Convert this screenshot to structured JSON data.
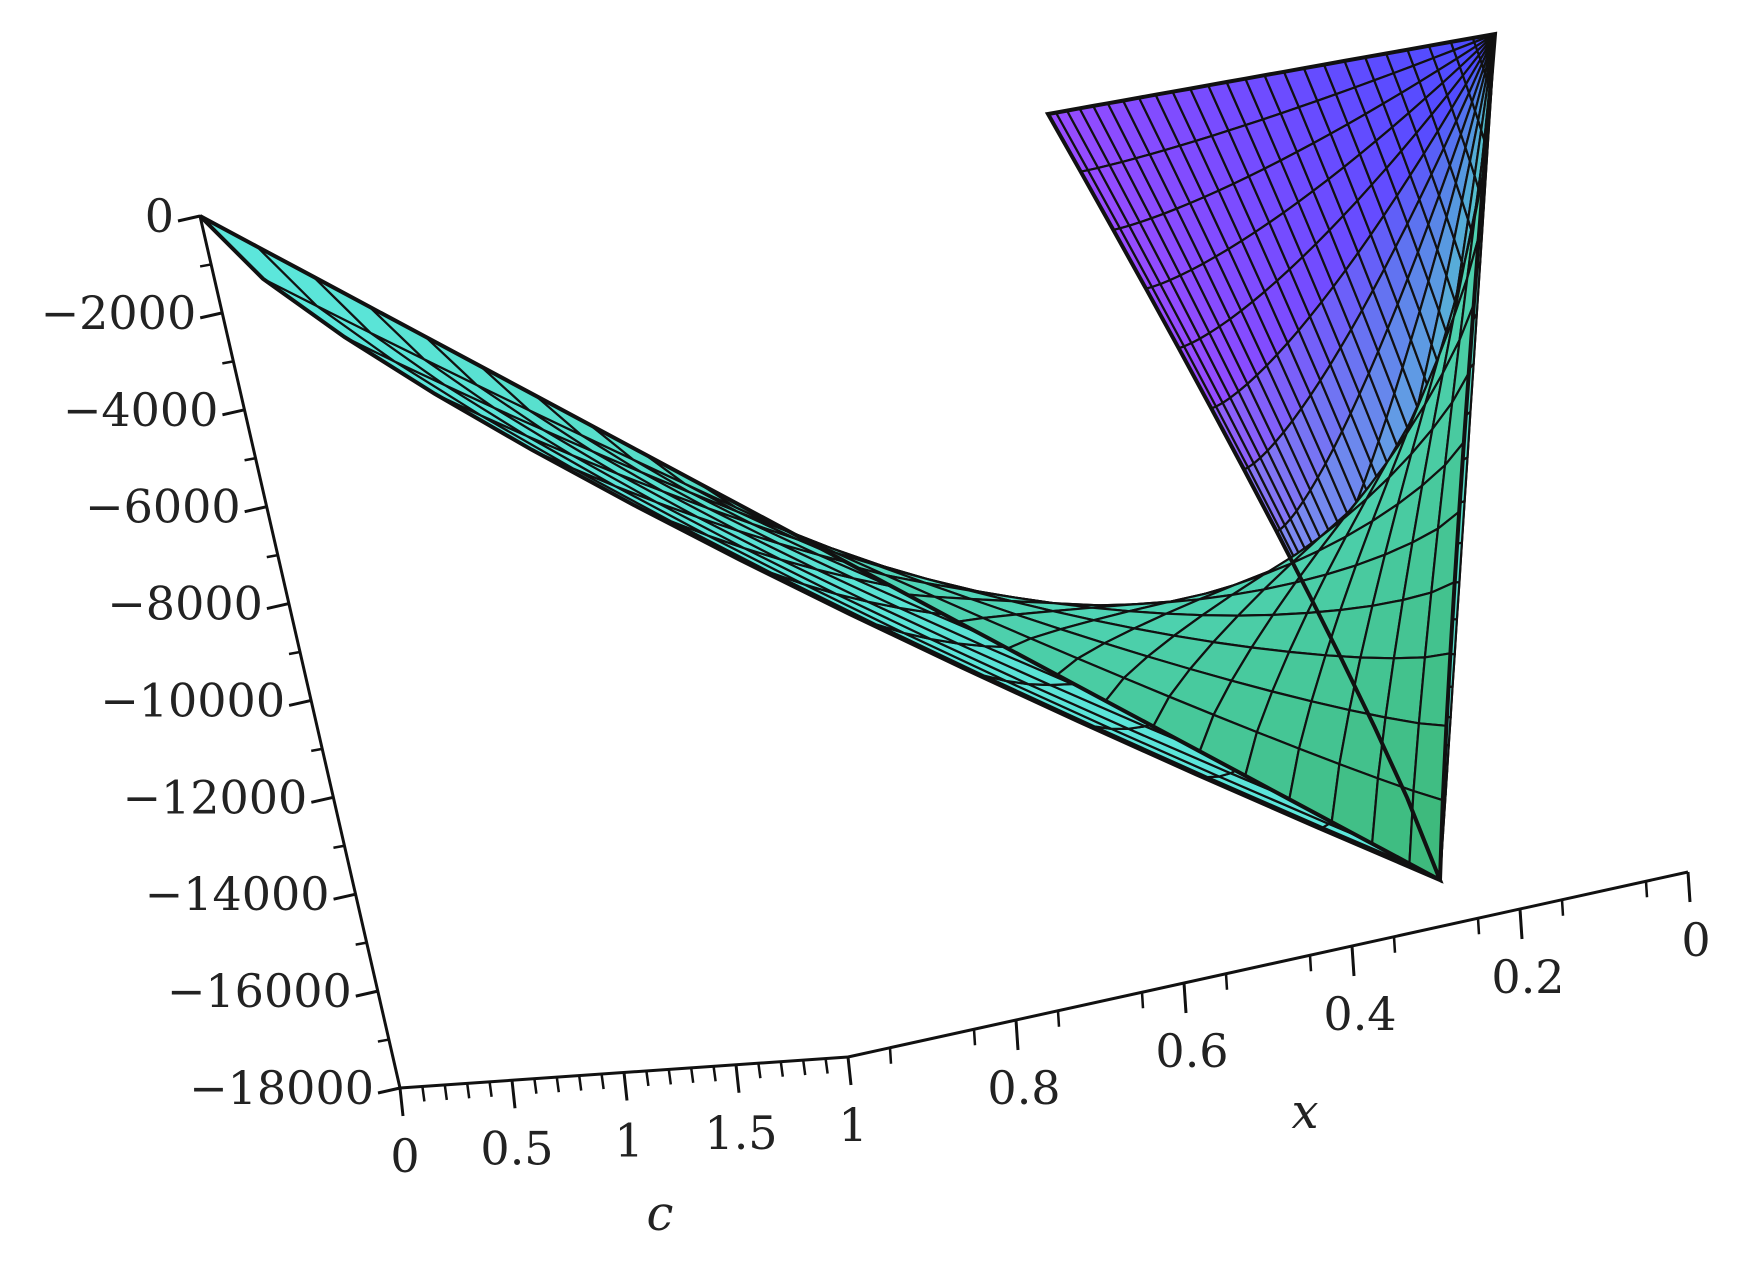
{
  "chart_data": {
    "type": "surface3d",
    "axes": {
      "z": {
        "ticks": [
          0,
          -2000,
          -4000,
          -6000,
          -8000,
          -10000,
          -12000,
          -14000,
          -16000,
          -18000
        ],
        "tick_labels": [
          "0",
          "−2000",
          "−4000",
          "−6000",
          "−8000",
          "−10000",
          "−12000",
          "−14000",
          "−16000",
          "−18000"
        ],
        "range": [
          -18000,
          0
        ],
        "label": ""
      },
      "c": {
        "ticks": [
          0,
          0.5,
          1,
          1.5,
          1
        ],
        "tick_labels": [
          "0",
          "0.5",
          "1",
          "1.5",
          "1"
        ],
        "label": "c"
      },
      "x": {
        "ticks": [
          0.8,
          0.6,
          0.4,
          0.2,
          0
        ],
        "tick_labels": [
          "0.8",
          "0.6",
          "0.4",
          "0.2",
          "0"
        ],
        "range": [
          0,
          1
        ],
        "label": "x"
      }
    },
    "surface": {
      "min_value": -14000,
      "max_value": 0,
      "grid_lines_c": 25,
      "grid_lines_x": 24
    },
    "colors": {
      "low": "#3cb878",
      "mid": "#5ce6dc",
      "high": "#4a4cff",
      "top_left": "#9a4cff",
      "grid": "#111111",
      "axis": "#111111"
    },
    "grid": false
  }
}
